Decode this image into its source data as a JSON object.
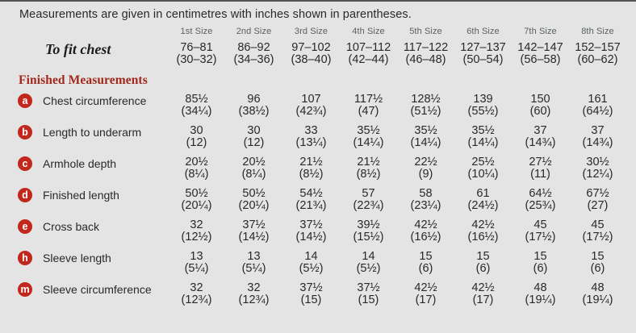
{
  "note": "Measurements are given in centimetres with inches shown in parentheses.",
  "section_heading": "Finished Measurements",
  "size_headers": [
    "1st Size",
    "2nd Size",
    "3rd Size",
    "4th Size",
    "5th Size",
    "6th Size",
    "7th Size",
    "8th Size"
  ],
  "to_fit_chest": {
    "label": "To fit chest",
    "cm": [
      "76–81",
      "86–92",
      "97–102",
      "107–112",
      "117–122",
      "127–137",
      "142–147",
      "152–157"
    ],
    "inches": [
      "(30–32)",
      "(34–36)",
      "(38–40)",
      "(42–44)",
      "(46–48)",
      "(50–54)",
      "(56–58)",
      "(60–62)"
    ]
  },
  "rows": [
    {
      "key": "a",
      "label": "Chest circumference",
      "cm": [
        "85½",
        "96",
        "107",
        "117½",
        "128½",
        "139",
        "150",
        "161"
      ],
      "inches": [
        "(34¼)",
        "(38½)",
        "(42¾)",
        "(47)",
        "(51½)",
        "(55½)",
        "(60)",
        "(64½)"
      ]
    },
    {
      "key": "b",
      "label": "Length to underarm",
      "cm": [
        "30",
        "30",
        "33",
        "35½",
        "35½",
        "35½",
        "37",
        "37"
      ],
      "inches": [
        "(12)",
        "(12)",
        "(13¼)",
        "(14¼)",
        "(14¼)",
        "(14¼)",
        "(14¾)",
        "(14¾)"
      ]
    },
    {
      "key": "c",
      "label": "Armhole depth",
      "cm": [
        "20½",
        "20½",
        "21½",
        "21½",
        "22½",
        "25½",
        "27½",
        "30½"
      ],
      "inches": [
        "(8¼)",
        "(8¼)",
        "(8½)",
        "(8½)",
        "(9)",
        "(10¼)",
        "(11)",
        "(12¼)"
      ]
    },
    {
      "key": "d",
      "label": "Finished length",
      "cm": [
        "50½",
        "50½",
        "54½",
        "57",
        "58",
        "61",
        "64½",
        "67½"
      ],
      "inches": [
        "(20¼)",
        "(20¼)",
        "(21¾)",
        "(22¾)",
        "(23¼)",
        "(24½)",
        "(25¾)",
        "(27)"
      ]
    },
    {
      "key": "e",
      "label": "Cross back",
      "cm": [
        "32",
        "37½",
        "37½",
        "39½",
        "42½",
        "42½",
        "45",
        "45"
      ],
      "inches": [
        "(12½)",
        "(14½)",
        "(14½)",
        "(15½)",
        "(16½)",
        "(16½)",
        "(17½)",
        "(17½)"
      ]
    },
    {
      "key": "h",
      "label": "Sleeve length",
      "cm": [
        "13",
        "13",
        "14",
        "14",
        "15",
        "15",
        "15",
        "15"
      ],
      "inches": [
        "(5¼)",
        "(5¼)",
        "(5½)",
        "(5½)",
        "(6)",
        "(6)",
        "(6)",
        "(6)"
      ]
    },
    {
      "key": "m",
      "label": "Sleeve circumference",
      "cm": [
        "32",
        "32",
        "37½",
        "37½",
        "42½",
        "42½",
        "48",
        "48"
      ],
      "inches": [
        "(12¾)",
        "(12¾)",
        "(15)",
        "(15)",
        "(17)",
        "(17)",
        "(19¼)",
        "(19¼)"
      ]
    }
  ],
  "colors": {
    "background": "#e3e4e3",
    "badge_red": "#c1271d",
    "heading_red": "#a3281c",
    "text": "#27292b",
    "size_header_gray": "#5a6065"
  }
}
